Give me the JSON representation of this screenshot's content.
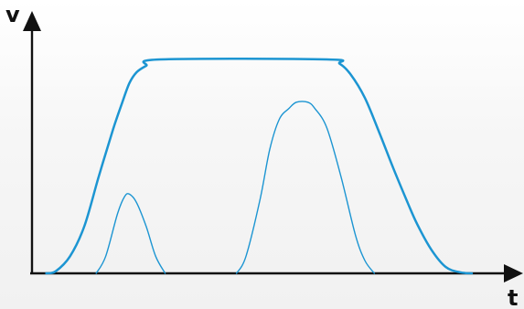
{
  "chart_data": {
    "type": "line",
    "title": "",
    "xlabel": "t",
    "ylabel": "v",
    "xlim": [
      0,
      100
    ],
    "ylim": [
      0,
      100
    ],
    "grid": false,
    "legend": "none",
    "colors": {
      "axis": "#111111",
      "curve": "#1c95d2"
    },
    "series": [
      {
        "points": [
          [
            3,
            0
          ],
          [
            5,
            1
          ],
          [
            8,
            8
          ],
          [
            11,
            22
          ],
          [
            14,
            45
          ],
          [
            17,
            67
          ],
          [
            19,
            80
          ],
          [
            20.5,
            89
          ],
          [
            22,
            94
          ],
          [
            24,
            97
          ],
          [
            27,
            100
          ],
          [
            62,
            100
          ],
          [
            64.7,
            98
          ],
          [
            67,
            93
          ],
          [
            70,
            82
          ],
          [
            73,
            66
          ],
          [
            76,
            49
          ],
          [
            79,
            33
          ],
          [
            81,
            23
          ],
          [
            84,
            11
          ],
          [
            87,
            3
          ],
          [
            90,
            0.5
          ],
          [
            92.5,
            0
          ]
        ],
        "width": 2.5
      },
      {
        "points": [
          [
            13.5,
            0
          ],
          [
            15.5,
            8
          ],
          [
            18,
            28
          ],
          [
            19.5,
            36
          ],
          [
            20.5,
            37
          ],
          [
            22,
            33
          ],
          [
            24,
            22
          ],
          [
            26,
            8
          ],
          [
            28,
            0
          ]
        ],
        "width": 1.4
      },
      {
        "points": [
          [
            43,
            0
          ],
          [
            45,
            8
          ],
          [
            48,
            35
          ],
          [
            50,
            58
          ],
          [
            52,
            72
          ],
          [
            54,
            77
          ],
          [
            55.6,
            80
          ],
          [
            58,
            80
          ],
          [
            59.5,
            77
          ],
          [
            62,
            68
          ],
          [
            65,
            45
          ],
          [
            68,
            18
          ],
          [
            70,
            6
          ],
          [
            72,
            0
          ]
        ],
        "width": 1.4
      }
    ]
  }
}
